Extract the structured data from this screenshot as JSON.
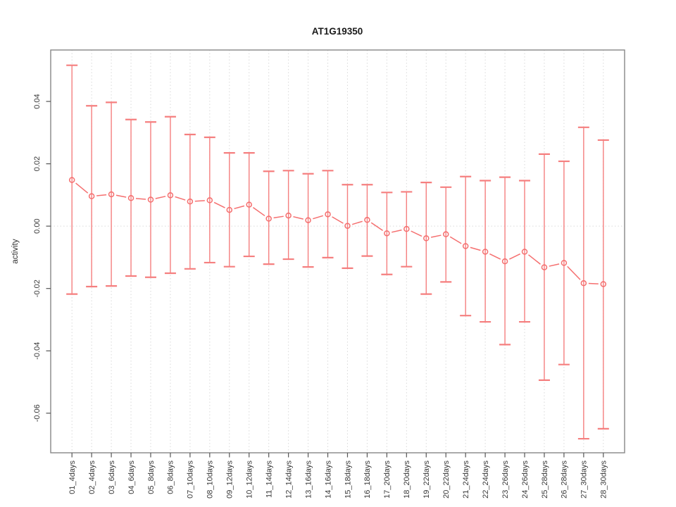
{
  "chart_data": {
    "type": "line",
    "title": "AT1G19350",
    "xlabel": "",
    "ylabel": "activity",
    "legend_position": "none",
    "point_style": "open-circle",
    "grid": {
      "vertical_per_category": true,
      "horizontal_zero_line": true,
      "style": "dotted"
    },
    "categories": [
      "01_4days",
      "02_4days",
      "03_6days",
      "04_6days",
      "05_8days",
      "06_8days",
      "07_10days",
      "08_10days",
      "09_12days",
      "10_12days",
      "11_14days",
      "12_14days",
      "13_16days",
      "14_16days",
      "15_18days",
      "16_18days",
      "17_20days",
      "18_20days",
      "19_22days",
      "20_22days",
      "21_24days",
      "22_24days",
      "23_26days",
      "24_26days",
      "25_28days",
      "26_28days",
      "27_30days",
      "28_30days"
    ],
    "series": [
      {
        "name": "activity",
        "values": [
          0.0148,
          0.0096,
          0.0102,
          0.009,
          0.0085,
          0.0099,
          0.0079,
          0.0083,
          0.0052,
          0.0069,
          0.0024,
          0.0034,
          0.0019,
          0.0038,
          0.0001,
          0.002,
          -0.0023,
          -0.0009,
          -0.0039,
          -0.0026,
          -0.0064,
          -0.0082,
          -0.0113,
          -0.0082,
          -0.0132,
          -0.0118,
          -0.0183,
          -0.0186
        ],
        "error_upper": [
          0.0516,
          0.0386,
          0.0397,
          0.0342,
          0.0334,
          0.0351,
          0.0294,
          0.0285,
          0.0235,
          0.0235,
          0.0176,
          0.0178,
          0.0168,
          0.0178,
          0.0133,
          0.0133,
          0.0108,
          0.011,
          0.014,
          0.0125,
          0.0159,
          0.0146,
          0.0157,
          0.0146,
          0.0231,
          0.0208,
          0.0317,
          0.0276
        ],
        "error_lower": [
          -0.0218,
          -0.0194,
          -0.0192,
          -0.016,
          -0.0164,
          -0.0151,
          -0.0137,
          -0.0117,
          -0.013,
          -0.0097,
          -0.0122,
          -0.0106,
          -0.0131,
          -0.0101,
          -0.0135,
          -0.0096,
          -0.0155,
          -0.013,
          -0.0218,
          -0.0179,
          -0.0287,
          -0.0307,
          -0.038,
          -0.0307,
          -0.0494,
          -0.0444,
          -0.0682,
          -0.065
        ]
      }
    ],
    "y_ticks": {
      "values": [
        0.04,
        0.02,
        0.0,
        -0.02,
        -0.04,
        -0.06
      ],
      "labels": [
        "0.04",
        "0.02",
        "0.00",
        "-0.02",
        "-0.04",
        "-0.06"
      ]
    },
    "ylim": [
      -0.0727,
      0.0565
    ],
    "xlim": [
      -0.08,
      29.08
    ],
    "colors": {
      "series": "#f56f6f",
      "error_bar": "#f57f7f",
      "grid": "#d9d9d9",
      "frame": "#878787",
      "tick": "#555555",
      "text": "#383838",
      "background": "#ffffff"
    }
  }
}
